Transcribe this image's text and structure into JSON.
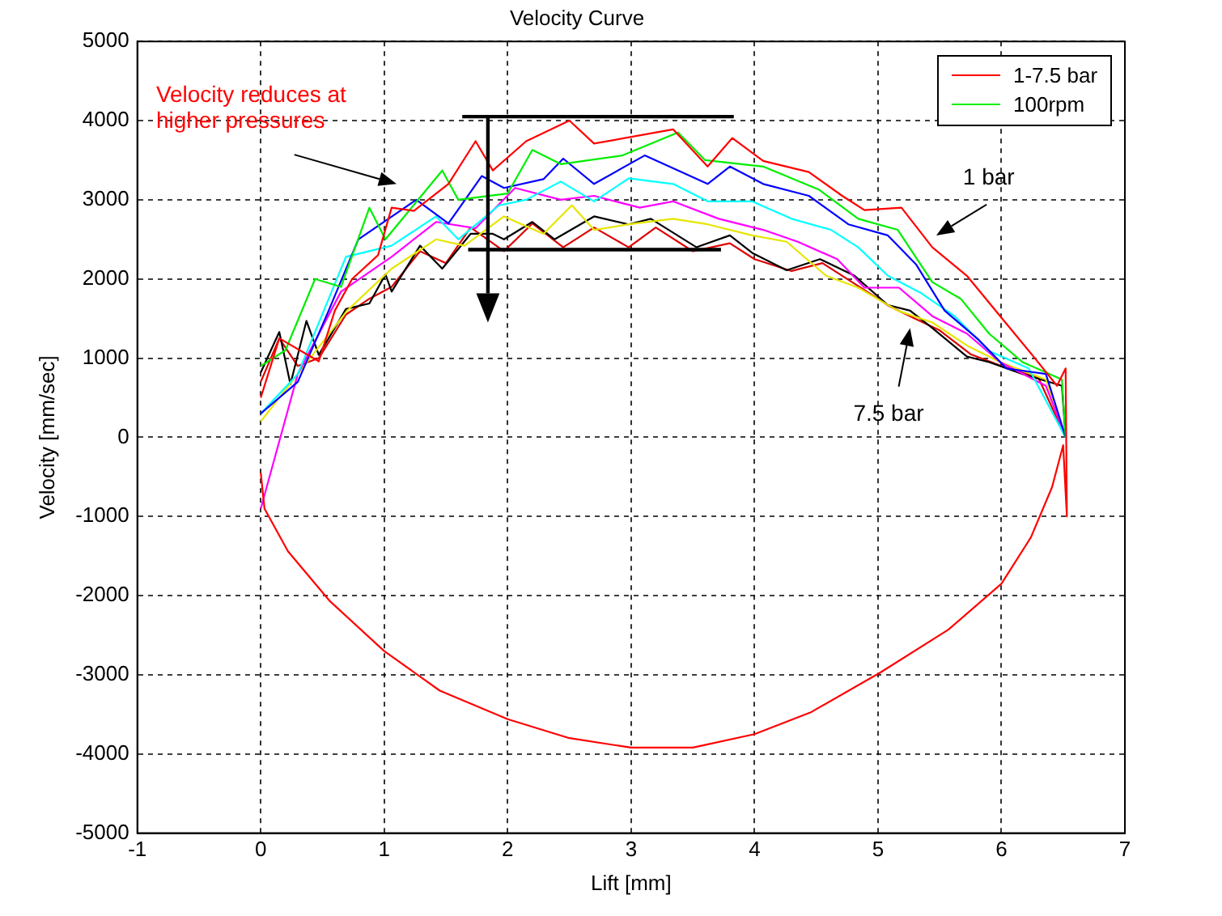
{
  "chart_data": {
    "type": "line",
    "title": "Velocity Curve",
    "xlabel": "Lift [mm]",
    "ylabel": "Velocity [mm/sec]",
    "xlim": [
      -1,
      7
    ],
    "xticks": [
      -1,
      0,
      1,
      2,
      3,
      4,
      5,
      6,
      7
    ],
    "ylim": [
      -5000,
      5000
    ],
    "yticks": [
      -5000,
      -4000,
      -3000,
      -2000,
      -1000,
      0,
      1000,
      2000,
      3000,
      4000,
      5000
    ],
    "grid": true,
    "legend": "top right",
    "marker": "none",
    "line_style": "solid",
    "annotations": [
      "Velocity reduces at higher  pressures",
      "1 bar",
      "7.5 bar"
    ],
    "series": [
      {
        "name": "1-7.5 bar",
        "color": "#ff0000",
        "x": [
          0,
          0.15,
          0.47,
          0.6,
          0.74,
          0.95,
          1.06,
          1.24,
          1.52,
          1.74,
          1.88,
          2.15,
          2.5,
          2.7,
          3.34,
          3.62,
          3.82,
          4.07,
          4.44,
          4.71,
          4.89,
          5.19,
          5.44,
          5.72,
          5.99,
          6.26,
          6.45,
          6.52,
          6.53,
          6.5,
          6.41,
          6.24,
          6.0,
          5.57,
          5.02,
          4.46,
          4.0,
          3.5,
          3.0,
          2.5,
          2.0,
          1.45,
          1.0,
          0.56,
          0.22,
          0.03,
          0
        ],
        "values": [
          500,
          1250,
          960,
          1600,
          2000,
          2300,
          2900,
          2860,
          3200,
          3740,
          3370,
          3740,
          4000,
          3710,
          3890,
          3420,
          3780,
          3490,
          3350,
          3050,
          2870,
          2900,
          2400,
          2040,
          1530,
          1020,
          650,
          870,
          -1000,
          -100,
          -630,
          -1260,
          -1850,
          -2430,
          -2970,
          -3470,
          -3750,
          -3920,
          -3920,
          -3800,
          -3560,
          -3200,
          -2700,
          -2070,
          -1440,
          -900,
          -450
        ]
      },
      {
        "name": "100rpm",
        "color": "#00ee00",
        "x": [
          0,
          0.2,
          0.44,
          0.65,
          0.88,
          1.01,
          1.47,
          1.6,
          2.0,
          2.2,
          2.43,
          2.93,
          3.38,
          3.6,
          4.07,
          4.52,
          4.84,
          5.16,
          5.44,
          5.67,
          5.9,
          6.17,
          6.49,
          6.52
        ],
        "values": [
          900,
          1100,
          2000,
          1900,
          2900,
          2500,
          3370,
          3000,
          3080,
          3630,
          3450,
          3560,
          3850,
          3500,
          3420,
          3130,
          2760,
          2620,
          1960,
          1750,
          1310,
          950,
          730,
          0
        ]
      },
      {
        "color": "#0000ff",
        "x": [
          0,
          0.3,
          0.55,
          0.79,
          1.26,
          1.52,
          1.79,
          1.97,
          2.29,
          2.45,
          2.7,
          3.11,
          3.62,
          3.8,
          4.07,
          4.44,
          4.76,
          5.08,
          5.31,
          5.54,
          5.81,
          6.04,
          6.36,
          6.52
        ],
        "values": [
          300,
          700,
          1600,
          2500,
          3000,
          2700,
          3300,
          3150,
          3260,
          3520,
          3200,
          3560,
          3200,
          3420,
          3200,
          3050,
          2690,
          2550,
          2180,
          1600,
          1240,
          870,
          800,
          0
        ]
      },
      {
        "color": "#00ffff",
        "x": [
          0,
          0.3,
          0.69,
          1.06,
          1.42,
          1.6,
          1.93,
          2.15,
          2.43,
          2.7,
          2.98,
          3.34,
          3.62,
          3.98,
          4.3,
          4.62,
          4.84,
          5.08,
          5.35,
          5.62,
          5.9,
          6.22,
          6.52
        ],
        "values": [
          300,
          800,
          2280,
          2420,
          2790,
          2500,
          2930,
          3000,
          3230,
          2980,
          3270,
          3200,
          2980,
          2980,
          2760,
          2620,
          2400,
          2040,
          1820,
          1530,
          1090,
          870,
          0
        ]
      },
      {
        "color": "#ff00ff",
        "x": [
          0,
          0.3,
          0.65,
          1.06,
          1.42,
          1.74,
          2.06,
          2.43,
          2.7,
          3.07,
          3.34,
          3.71,
          4.07,
          4.35,
          4.67,
          4.89,
          5.17,
          5.44,
          5.72,
          5.99,
          6.36,
          6.52
        ],
        "values": [
          -900,
          800,
          1840,
          2280,
          2720,
          2640,
          3150,
          3000,
          3050,
          2900,
          2980,
          2760,
          2620,
          2470,
          2250,
          1890,
          1890,
          1530,
          1310,
          950,
          650,
          0
        ]
      },
      {
        "color": "#e6e600",
        "x": [
          0,
          0.3,
          0.7,
          1.06,
          1.42,
          1.65,
          1.97,
          2.29,
          2.52,
          2.7,
          2.98,
          3.34,
          3.62,
          3.98,
          4.26,
          4.58,
          4.84,
          5.16,
          5.44,
          5.72,
          5.99,
          6.36,
          6.52
        ],
        "values": [
          200,
          800,
          1600,
          2130,
          2500,
          2420,
          2790,
          2570,
          2930,
          2620,
          2690,
          2760,
          2690,
          2550,
          2470,
          2040,
          1890,
          1600,
          1450,
          1160,
          950,
          730,
          0
        ]
      },
      {
        "color": "#000000",
        "x": [
          0,
          0.15,
          0.24,
          0.37,
          0.47,
          0.69,
          0.88,
          1.01,
          1.06,
          1.29,
          1.47,
          1.7,
          1.88,
          1.97,
          2.2,
          2.38,
          2.7,
          2.98,
          3.16,
          3.53,
          3.8,
          3.98,
          4.26,
          4.53,
          4.81,
          5.08,
          5.26,
          5.44,
          5.72,
          5.9,
          6.17,
          6.49,
          6.52
        ],
        "values": [
          820,
          1330,
          670,
          1470,
          1040,
          1620,
          1690,
          2060,
          1840,
          2420,
          2130,
          2570,
          2570,
          2500,
          2720,
          2500,
          2790,
          2690,
          2760,
          2400,
          2550,
          2330,
          2110,
          2250,
          2040,
          1670,
          1600,
          1380,
          1020,
          950,
          800,
          650,
          0
        ]
      },
      {
        "color": "#dd0000",
        "x": [
          0,
          0.15,
          0.3,
          0.47,
          0.69,
          0.88,
          1.06,
          1.29,
          1.5,
          1.7,
          1.97,
          2.2,
          2.45,
          2.7,
          2.98,
          3.2,
          3.5,
          3.8,
          4.0,
          4.3,
          4.55,
          4.8,
          5.1,
          5.3,
          5.5,
          5.75,
          6.0,
          6.3,
          6.52
        ],
        "values": [
          700,
          1250,
          900,
          1000,
          1550,
          1750,
          1900,
          2350,
          2200,
          2650,
          2350,
          2700,
          2400,
          2650,
          2400,
          2650,
          2350,
          2450,
          2250,
          2100,
          2200,
          1950,
          1650,
          1500,
          1350,
          1050,
          900,
          750,
          0
        ]
      }
    ]
  }
}
